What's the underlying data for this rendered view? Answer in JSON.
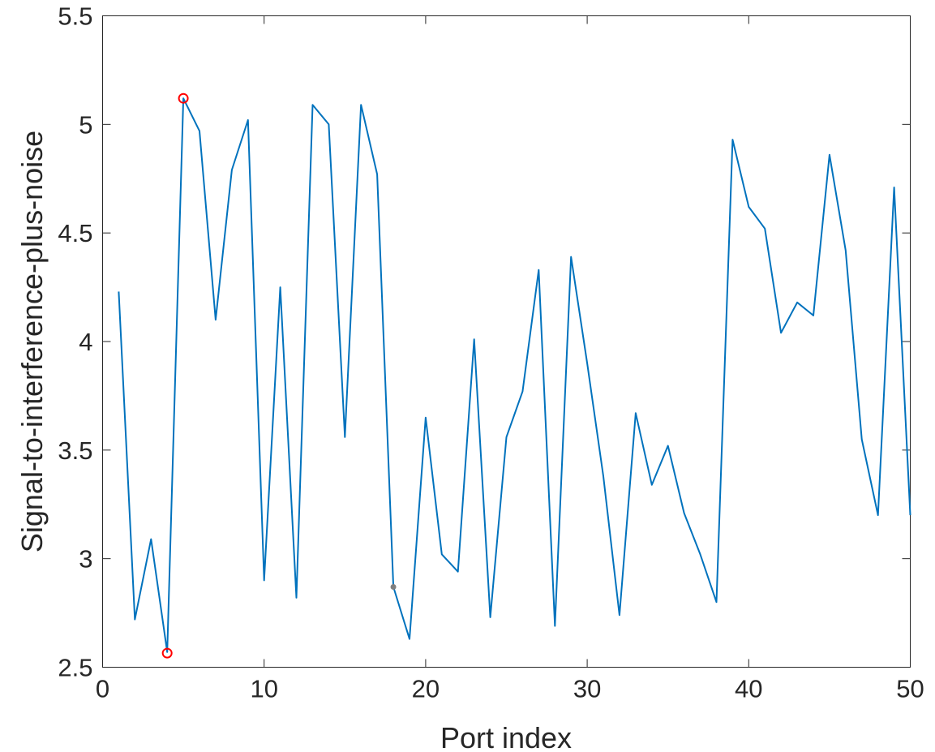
{
  "chart_data": {
    "type": "line",
    "xlabel": "Port index",
    "ylabel": "Signal-to-interference-plus-noise",
    "xlim": [
      0,
      50
    ],
    "ylim": [
      2.5,
      5.5
    ],
    "xticks": [
      0,
      10,
      20,
      30,
      40,
      50
    ],
    "xtick_labels": [
      "0",
      "10",
      "20",
      "30",
      "40",
      "50"
    ],
    "yticks": [
      2.5,
      3,
      3.5,
      4,
      4.5,
      5,
      5.5
    ],
    "ytick_labels": [
      "2.5",
      "3",
      "3.5",
      "4",
      "4.5",
      "5",
      "5.5"
    ],
    "grid": false,
    "series": [
      {
        "color": "#0072BD",
        "x": [
          1,
          2,
          3,
          4,
          5,
          6,
          7,
          8,
          9,
          10,
          11,
          12,
          13,
          14,
          15,
          16,
          17,
          18,
          19,
          20,
          21,
          22,
          23,
          24,
          25,
          26,
          27,
          28,
          29,
          30,
          31,
          32,
          33,
          34,
          35,
          36,
          37,
          38,
          39,
          40,
          41,
          42,
          43,
          44,
          45,
          46,
          47,
          48,
          49,
          50
        ],
        "y": [
          4.23,
          2.72,
          3.09,
          2.57,
          5.12,
          4.97,
          4.1,
          4.79,
          5.02,
          2.9,
          4.25,
          2.82,
          5.09,
          5.0,
          3.56,
          5.09,
          4.77,
          2.87,
          2.63,
          3.65,
          3.02,
          2.94,
          4.01,
          2.73,
          3.56,
          3.77,
          4.33,
          2.69,
          4.39,
          3.9,
          3.38,
          2.74,
          3.67,
          3.34,
          3.52,
          3.21,
          3.02,
          2.8,
          4.93,
          4.62,
          4.52,
          4.04,
          4.18,
          4.12,
          4.86,
          4.42,
          3.55,
          3.2,
          4.71,
          3.2
        ]
      }
    ],
    "markers": [
      {
        "shape": "circle",
        "color": "#FF0000",
        "x": 5,
        "y": 5.12
      },
      {
        "shape": "circle",
        "color": "#FF0000",
        "x": 4,
        "y": 2.565
      },
      {
        "shape": "dot",
        "color": "#7F7F7F",
        "x": 18,
        "y": 2.87
      }
    ]
  }
}
